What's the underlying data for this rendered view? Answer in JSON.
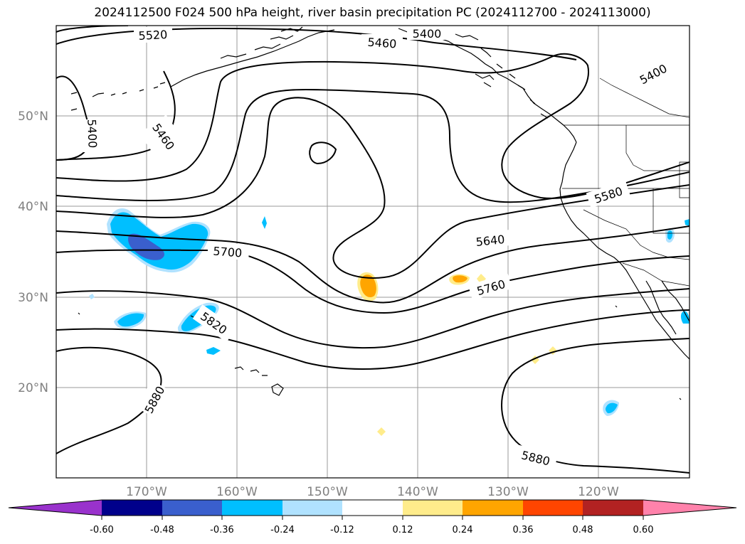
{
  "title": "2024112500 F024 500 hPa height, river basin precipitation PC (2024112700 - 2024113000)",
  "map": {
    "lat_labels": [
      "50°N",
      "40°N",
      "30°N",
      "20°N"
    ],
    "lon_labels": [
      "170°W",
      "160°W",
      "150°W",
      "140°W",
      "130°W",
      "120°W"
    ],
    "lon_range": [
      -180,
      -110
    ],
    "lat_range": [
      10,
      60
    ],
    "gridlines": true,
    "contour_labels": [
      "5520",
      "5460",
      "5400",
      "5400",
      "5400",
      "5460",
      "5580",
      "5640",
      "5700",
      "5760",
      "5820",
      "5880",
      "5880"
    ]
  },
  "colorbar": {
    "ticks": [
      "-0.60",
      "-0.48",
      "-0.36",
      "-0.24",
      "-0.12",
      "0.12",
      "0.24",
      "0.36",
      "0.48",
      "0.60"
    ],
    "colors": [
      "#9932cc",
      "#00008b",
      "#3a5fcd",
      "#00bfff",
      "#b0e2ff",
      "#ffffff",
      "#ffec8b",
      "#ffa500",
      "#ff4500",
      "#b22222",
      "#ff82ab"
    ]
  }
}
